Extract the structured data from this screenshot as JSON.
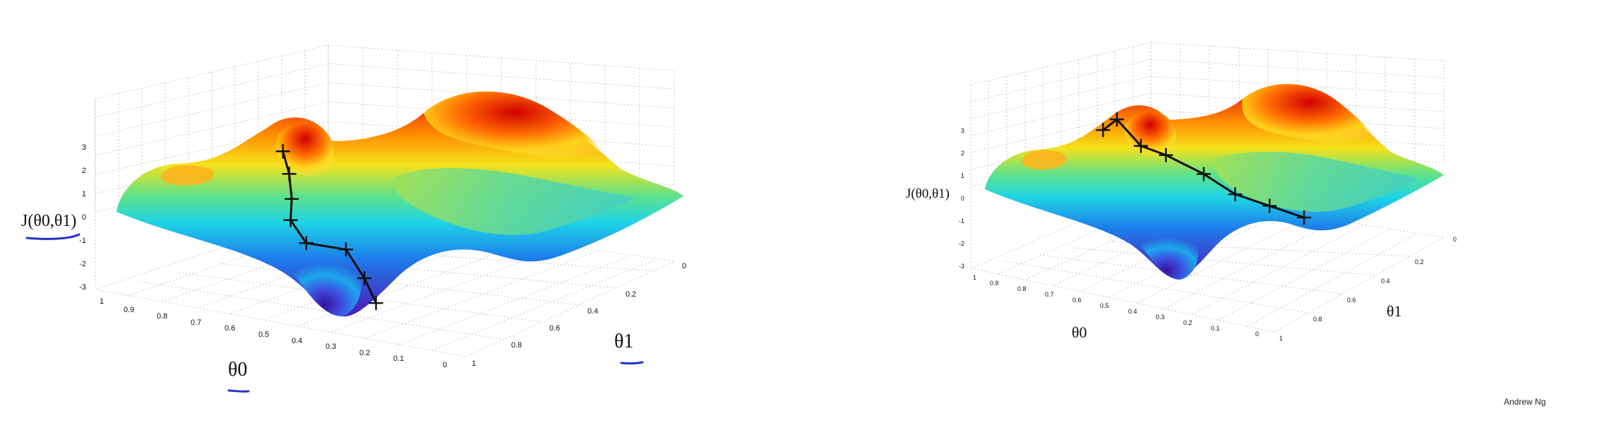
{
  "chart_data": [
    {
      "type": "surface",
      "title": "",
      "xlabel": "θ0",
      "ylabel": "θ1",
      "zlabel": "J(θ0,θ1)",
      "x_ticks": [
        "0",
        "0.1",
        "0.2",
        "0.3",
        "0.4",
        "0.5",
        "0.6",
        "0.7",
        "0.8",
        "0.9",
        "1"
      ],
      "y_ticks": [
        "0",
        "0.2",
        "0.4",
        "0.6",
        "0.8",
        "1"
      ],
      "z_ticks": [
        "-3",
        "-2",
        "-1",
        "0",
        "1",
        "2",
        "3"
      ],
      "xlim": [
        0,
        1
      ],
      "ylim": [
        0,
        1
      ],
      "zlim": [
        -3,
        3
      ],
      "grid": true,
      "colormap": "jet",
      "annotations": [
        "θ0 underlined in blue",
        "θ1 underlined in blue",
        "J(θ0,θ1) underlined in blue"
      ],
      "path": [
        {
          "x": 0.55,
          "y": 0.1,
          "z": 2.0
        },
        {
          "x": 0.55,
          "y": 0.13,
          "z": 1.2
        },
        {
          "x": 0.56,
          "y": 0.16,
          "z": 0.3
        },
        {
          "x": 0.58,
          "y": 0.19,
          "z": -0.5
        },
        {
          "x": 0.56,
          "y": 0.23,
          "z": -1.3
        },
        {
          "x": 0.47,
          "y": 0.26,
          "z": -1.4
        },
        {
          "x": 0.42,
          "y": 0.26,
          "z": -2.2
        },
        {
          "x": 0.4,
          "y": 0.28,
          "z": -3.0
        }
      ]
    },
    {
      "type": "surface",
      "title": "",
      "xlabel": "θ0",
      "ylabel": "θ1",
      "zlabel": "J(θ0,θ1)",
      "x_ticks": [
        "0",
        "0.1",
        "0.2",
        "0.3",
        "0.4",
        "0.5",
        "0.6",
        "0.7",
        "0.8",
        "0.9",
        "1"
      ],
      "y_ticks": [
        "0",
        "0.2",
        "0.4",
        "0.6",
        "0.8",
        "1"
      ],
      "z_ticks": [
        "-3",
        "-2",
        "-1",
        "0",
        "1",
        "2",
        "3"
      ],
      "xlim": [
        0,
        1
      ],
      "ylim": [
        0,
        1
      ],
      "zlim": [
        -3,
        3
      ],
      "grid": true,
      "colormap": "jet",
      "path": [
        {
          "x": 0.62,
          "y": 0.1,
          "z": 2.0
        },
        {
          "x": 0.58,
          "y": 0.11,
          "z": 2.4
        },
        {
          "x": 0.54,
          "y": 0.18,
          "z": 1.4
        },
        {
          "x": 0.48,
          "y": 0.22,
          "z": 1.1
        },
        {
          "x": 0.4,
          "y": 0.3,
          "z": 0.4
        },
        {
          "x": 0.33,
          "y": 0.36,
          "z": -0.3
        },
        {
          "x": 0.25,
          "y": 0.42,
          "z": -0.7
        },
        {
          "x": 0.17,
          "y": 0.48,
          "z": -1.1
        }
      ]
    }
  ],
  "credit": "Andrew Ng",
  "colors": {
    "annotation_underline": "#2233cc",
    "path": "#111111",
    "grid": "#bdbdbd"
  }
}
